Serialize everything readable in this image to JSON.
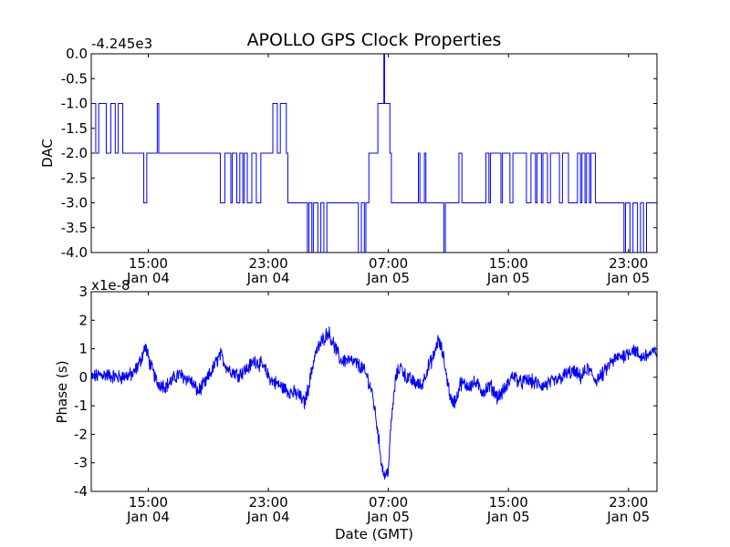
{
  "chart_data": {
    "title": "APOLLO GPS Clock Properties",
    "line_color": "#0000ff",
    "x_axis": {
      "label": "Date (GMT)",
      "range_hours": [
        11.2,
        48.9
      ],
      "ticks": [
        {
          "t": 15,
          "time": "15:00",
          "date": "Jan 04"
        },
        {
          "t": 23,
          "time": "23:00",
          "date": "Jan 04"
        },
        {
          "t": 31,
          "time": "07:00",
          "date": "Jan 05"
        },
        {
          "t": 39,
          "time": "15:00",
          "date": "Jan 05"
        },
        {
          "t": 47,
          "time": "23:00",
          "date": "Jan 05"
        }
      ]
    },
    "panels": [
      {
        "type": "line",
        "name": "dac",
        "ylabel": "DAC",
        "offset_text": "-4.245e3",
        "ylim": [
          -4.0,
          0.0
        ],
        "yticks": [
          0.0,
          -0.5,
          -1.0,
          -1.5,
          -2.0,
          -2.5,
          -3.0,
          -3.5,
          -4.0
        ],
        "ytick_labels": [
          "0.0",
          "-0.5",
          "-1.0",
          "-1.5",
          "-2.0",
          "-2.5",
          "-3.0",
          "-3.5",
          "-4.0"
        ],
        "step": true,
        "series": [
          [
            11.2,
            -1
          ],
          [
            11.5,
            -2
          ],
          [
            11.7,
            -1
          ],
          [
            12.0,
            -1
          ],
          [
            12.2,
            -2
          ],
          [
            12.5,
            -1
          ],
          [
            12.8,
            -2
          ],
          [
            13.0,
            -1
          ],
          [
            13.3,
            -2
          ],
          [
            14.6,
            -2
          ],
          [
            14.7,
            -3
          ],
          [
            14.9,
            -2
          ],
          [
            15.4,
            -2
          ],
          [
            15.6,
            -1
          ],
          [
            15.7,
            -2
          ],
          [
            19.7,
            -2
          ],
          [
            19.8,
            -3
          ],
          [
            20.1,
            -2
          ],
          [
            20.4,
            -2
          ],
          [
            20.5,
            -3
          ],
          [
            20.6,
            -2
          ],
          [
            20.9,
            -3
          ],
          [
            21.1,
            -2
          ],
          [
            21.3,
            -3
          ],
          [
            21.4,
            -2
          ],
          [
            21.6,
            -3
          ],
          [
            21.8,
            -3
          ],
          [
            21.9,
            -2
          ],
          [
            22.2,
            -3
          ],
          [
            22.5,
            -2
          ],
          [
            22.8,
            -2
          ],
          [
            23.2,
            -2
          ],
          [
            23.3,
            -1
          ],
          [
            23.6,
            -2
          ],
          [
            23.8,
            -1
          ],
          [
            24.2,
            -2
          ],
          [
            24.3,
            -3
          ],
          [
            24.6,
            -3
          ],
          [
            25.5,
            -3
          ],
          [
            25.6,
            -4
          ],
          [
            25.7,
            -3
          ],
          [
            25.9,
            -4
          ],
          [
            26.0,
            -3
          ],
          [
            26.3,
            -4
          ],
          [
            26.5,
            -3
          ],
          [
            26.7,
            -4
          ],
          [
            26.9,
            -3
          ],
          [
            27.2,
            -3
          ],
          [
            28.9,
            -3
          ],
          [
            29.0,
            -4
          ],
          [
            29.2,
            -3
          ],
          [
            29.4,
            -4
          ],
          [
            29.5,
            -3
          ],
          [
            29.7,
            -2
          ],
          [
            29.9,
            -2
          ],
          [
            30.2,
            -2
          ],
          [
            30.3,
            -1
          ],
          [
            30.5,
            -1
          ],
          [
            30.6,
            -1
          ],
          [
            30.7,
            0
          ],
          [
            30.75,
            -1
          ],
          [
            31.0,
            -1
          ],
          [
            31.1,
            -2
          ],
          [
            31.2,
            -3
          ],
          [
            31.4,
            -3
          ],
          [
            32.9,
            -3
          ],
          [
            33.0,
            -2
          ],
          [
            33.1,
            -3
          ],
          [
            33.3,
            -3
          ],
          [
            33.4,
            -2
          ],
          [
            33.5,
            -3
          ],
          [
            34.6,
            -3
          ],
          [
            34.7,
            -4
          ],
          [
            34.8,
            -3
          ],
          [
            35.6,
            -3
          ],
          [
            35.7,
            -2
          ],
          [
            35.9,
            -3
          ],
          [
            37.2,
            -3
          ],
          [
            37.5,
            -2
          ],
          [
            37.7,
            -3
          ],
          [
            37.8,
            -2
          ],
          [
            38.4,
            -2
          ],
          [
            38.5,
            -3
          ],
          [
            38.6,
            -2
          ],
          [
            38.9,
            -2
          ],
          [
            39.1,
            -3
          ],
          [
            39.3,
            -2
          ],
          [
            40.0,
            -2
          ],
          [
            40.2,
            -3
          ],
          [
            40.5,
            -2
          ],
          [
            40.8,
            -3
          ],
          [
            40.9,
            -2
          ],
          [
            41.2,
            -3
          ],
          [
            41.3,
            -2
          ],
          [
            41.6,
            -3
          ],
          [
            41.8,
            -2
          ],
          [
            42.3,
            -2
          ],
          [
            42.4,
            -3
          ],
          [
            42.6,
            -2
          ],
          [
            43.0,
            -3
          ],
          [
            43.5,
            -3
          ],
          [
            43.6,
            -2
          ],
          [
            43.8,
            -3
          ],
          [
            43.9,
            -2
          ],
          [
            44.1,
            -3
          ],
          [
            44.2,
            -2
          ],
          [
            44.4,
            -3
          ],
          [
            44.5,
            -2
          ],
          [
            44.8,
            -3
          ],
          [
            46.6,
            -3
          ],
          [
            46.7,
            -4
          ],
          [
            46.8,
            -3
          ],
          [
            47.1,
            -4
          ],
          [
            47.3,
            -3
          ],
          [
            47.6,
            -4
          ],
          [
            47.8,
            -3
          ],
          [
            48.0,
            -4
          ],
          [
            48.2,
            -3
          ],
          [
            48.9,
            -3
          ]
        ]
      },
      {
        "type": "line",
        "name": "phase",
        "ylabel": "Phase (s)",
        "offset_text": "x1e-8",
        "ylim": [
          -4,
          3
        ],
        "yticks": [
          3,
          2,
          1,
          0,
          -1,
          -2,
          -3,
          -4
        ],
        "ytick_labels": [
          "3",
          "2",
          "1",
          "0",
          "-1",
          "-2",
          "-3",
          "-4"
        ],
        "noise_amplitude": 0.22,
        "series": [
          [
            11.2,
            0.0
          ],
          [
            12.0,
            0.1
          ],
          [
            13.0,
            0.0
          ],
          [
            14.0,
            0.1
          ],
          [
            14.5,
            0.6
          ],
          [
            14.8,
            1.1
          ],
          [
            15.1,
            0.5
          ],
          [
            15.6,
            -0.2
          ],
          [
            16.2,
            -0.3
          ],
          [
            17.0,
            0.1
          ],
          [
            17.8,
            -0.1
          ],
          [
            18.3,
            -0.5
          ],
          [
            18.8,
            -0.2
          ],
          [
            19.3,
            0.3
          ],
          [
            19.8,
            0.8
          ],
          [
            20.3,
            0.3
          ],
          [
            21.0,
            0.1
          ],
          [
            21.6,
            0.3
          ],
          [
            22.1,
            0.6
          ],
          [
            22.6,
            0.4
          ],
          [
            23.2,
            -0.1
          ],
          [
            23.8,
            -0.3
          ],
          [
            24.4,
            -0.5
          ],
          [
            25.0,
            -0.6
          ],
          [
            25.4,
            -0.9
          ],
          [
            25.7,
            -0.3
          ],
          [
            26.1,
            0.8
          ],
          [
            26.6,
            1.3
          ],
          [
            27.0,
            1.6
          ],
          [
            27.4,
            1.1
          ],
          [
            27.8,
            0.6
          ],
          [
            28.3,
            0.6
          ],
          [
            28.8,
            0.5
          ],
          [
            29.3,
            0.3
          ],
          [
            29.6,
            0.0
          ],
          [
            29.9,
            -0.5
          ],
          [
            30.2,
            -1.5
          ],
          [
            30.4,
            -2.4
          ],
          [
            30.6,
            -3.2
          ],
          [
            30.8,
            -3.5
          ],
          [
            31.0,
            -3.2
          ],
          [
            31.2,
            -1.5
          ],
          [
            31.5,
            0.0
          ],
          [
            31.8,
            0.4
          ],
          [
            32.2,
            0.0
          ],
          [
            32.8,
            -0.2
          ],
          [
            33.2,
            -0.3
          ],
          [
            33.6,
            0.3
          ],
          [
            34.0,
            0.7
          ],
          [
            34.3,
            1.3
          ],
          [
            34.6,
            0.9
          ],
          [
            34.9,
            0.0
          ],
          [
            35.2,
            -0.9
          ],
          [
            35.5,
            -0.8
          ],
          [
            35.8,
            -0.2
          ],
          [
            36.3,
            -0.3
          ],
          [
            36.8,
            -0.2
          ],
          [
            37.3,
            -0.5
          ],
          [
            37.8,
            -0.3
          ],
          [
            38.3,
            -0.7
          ],
          [
            38.8,
            -0.4
          ],
          [
            39.3,
            0.1
          ],
          [
            39.8,
            -0.2
          ],
          [
            40.3,
            -0.1
          ],
          [
            40.8,
            -0.2
          ],
          [
            41.3,
            -0.3
          ],
          [
            41.8,
            -0.2
          ],
          [
            42.3,
            -0.1
          ],
          [
            42.8,
            0.1
          ],
          [
            43.3,
            0.2
          ],
          [
            43.8,
            0.0
          ],
          [
            44.3,
            0.3
          ],
          [
            44.8,
            -0.1
          ],
          [
            45.3,
            0.1
          ],
          [
            45.8,
            0.5
          ],
          [
            46.3,
            0.7
          ],
          [
            46.8,
            0.8
          ],
          [
            47.3,
            1.0
          ],
          [
            47.8,
            0.7
          ],
          [
            48.3,
            0.8
          ],
          [
            48.9,
            0.9
          ]
        ]
      }
    ]
  }
}
